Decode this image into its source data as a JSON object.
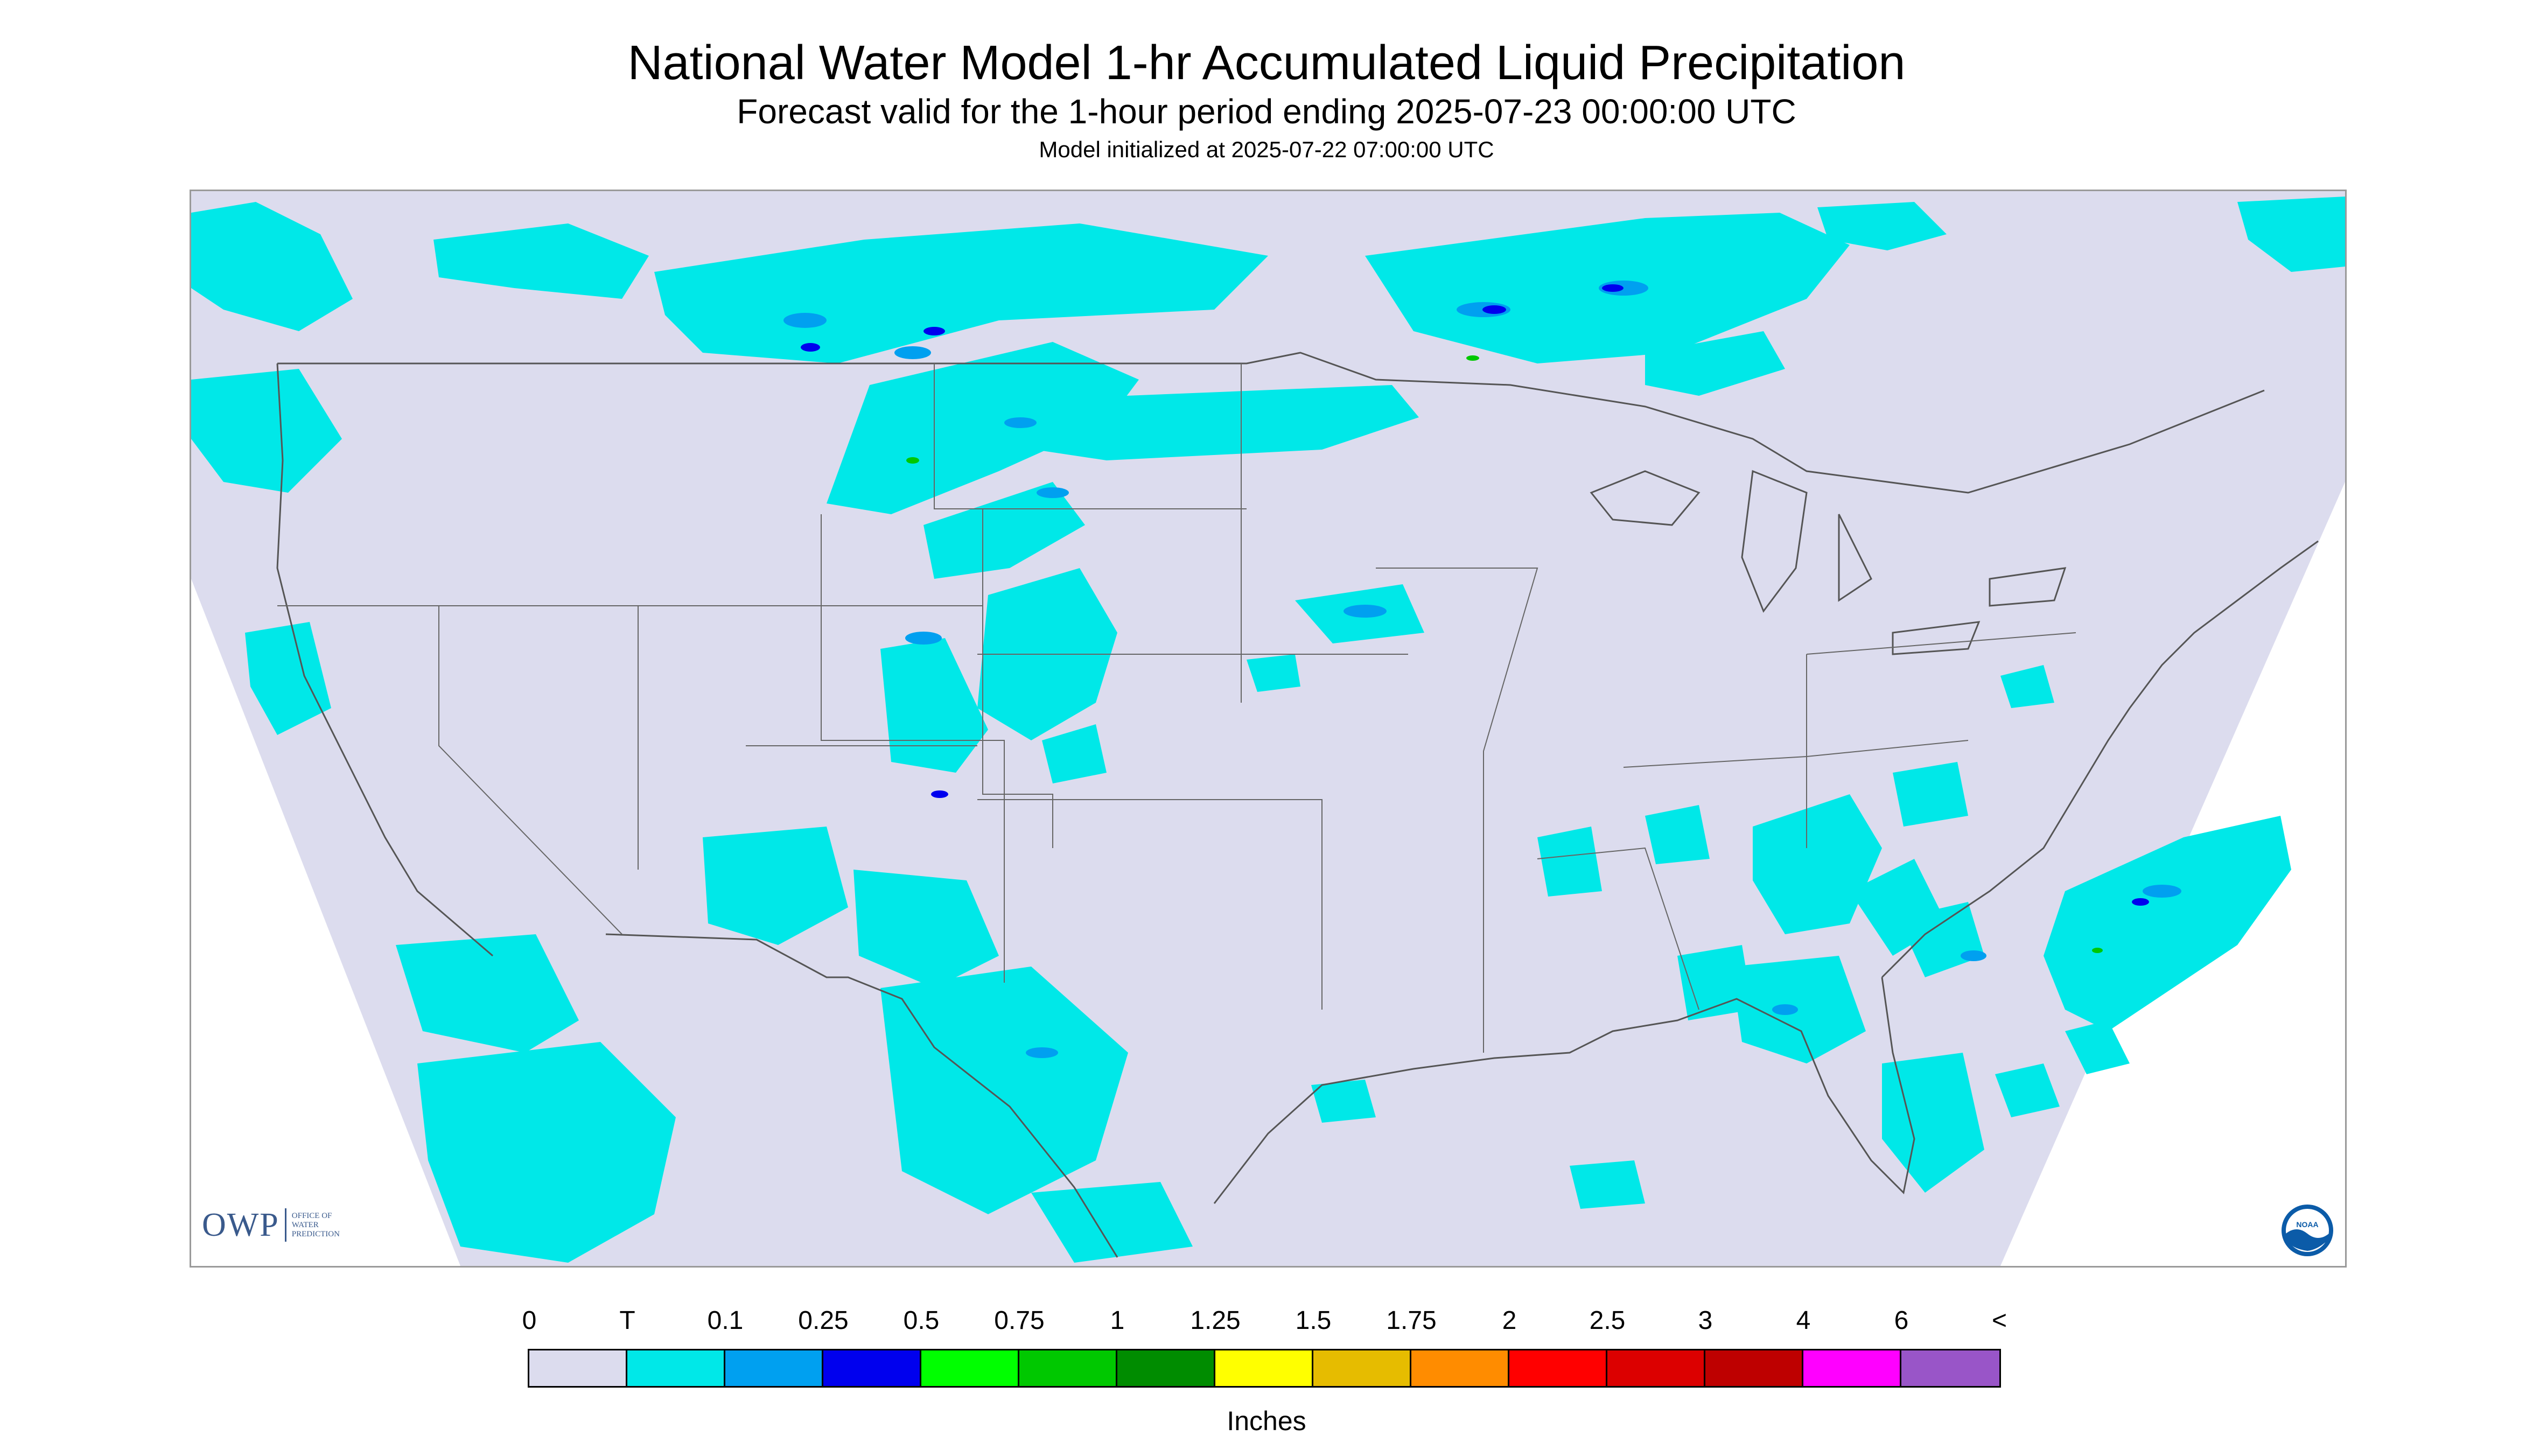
{
  "title": "National Water Model 1-hr Accumulated Liquid Precipitation",
  "subtitle": "Forecast valid for the 1-hour period ending 2025-07-23 00:00:00 UTC",
  "init_line": "Model initialized at 2025-07-22 07:00:00 UTC",
  "logos": {
    "owp_letters": "OWP",
    "owp_sub_1": "OFFICE OF",
    "owp_sub_2": "WATER",
    "owp_sub_3": "PREDICTION",
    "noaa_text": "NOAA"
  },
  "legend": {
    "units": "Inches",
    "labels": [
      "0",
      "T",
      "0.1",
      "0.25",
      "0.5",
      "0.75",
      "1",
      "1.25",
      "1.5",
      "1.75",
      "2",
      "2.5",
      "3",
      "4",
      "6",
      "<"
    ],
    "colors": [
      "#dcdcee",
      "#00e8e8",
      "#00a0f0",
      "#0000ee",
      "#00ff00",
      "#00c800",
      "#008c00",
      "#ffff00",
      "#e6bc00",
      "#ff8c00",
      "#ff0000",
      "#dc0000",
      "#be0000",
      "#ff00ff",
      "#9955c8"
    ]
  },
  "colors": {
    "map_fill": "#dcdcee",
    "light_precip": "#00e8e8",
    "mid_precip": "#00a0f0",
    "heavy_precip": "#0000ee",
    "boundary": "#555555"
  }
}
